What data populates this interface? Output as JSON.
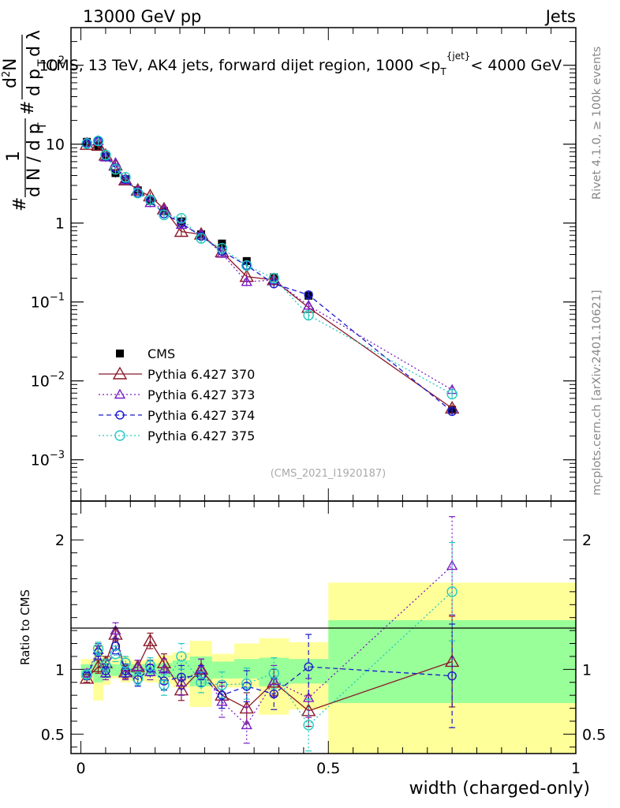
{
  "header": {
    "left": "13000 GeV pp",
    "right": "Jets"
  },
  "colors": {
    "cms": "#000000",
    "s370": "#8b1a2a",
    "s373": "#7a1fc2",
    "s374": "#1a1acc",
    "s375": "#22c9c0",
    "band_yellow": "#ffff99",
    "band_green": "#99ff99"
  },
  "chart_data": [
    {
      "type": "line",
      "panel": "main",
      "title": "CMS, 13 TeV, AK4 jets, forward dijet region, 1000 <p_T^{jet}< 4000 GeV",
      "ylabel": "1/dN/dp_T  dN/dp_T dλ",
      "ylabel_parts": [
        "#",
        "1",
        "d N / d p",
        "T",
        "#",
        "d",
        "2",
        "N",
        "d p",
        "T",
        "d λ"
      ],
      "yscale": "log",
      "ylim": [
        0.0003,
        300
      ],
      "xlim": [
        -0.02,
        1.0
      ],
      "yticks": [
        {
          "value": 0.001,
          "base": "10",
          "exp": "−3"
        },
        {
          "value": 0.01,
          "base": "10",
          "exp": "−2"
        },
        {
          "value": 0.1,
          "base": "10",
          "exp": "−1"
        },
        {
          "value": 1,
          "base": "1",
          "exp": ""
        },
        {
          "value": 10,
          "base": "10",
          "exp": ""
        },
        {
          "value": 100,
          "base": "10",
          "exp": "2"
        }
      ],
      "side_labels": {
        "rivet": "Rivet 4.1.0, ≥ 100k events",
        "mcplots": "mcplots.cern.ch [arXiv:2401.10621]"
      },
      "watermark": "(CMS_2021_I1920187)",
      "x": [
        0.012,
        0.035,
        0.05,
        0.07,
        0.09,
        0.115,
        0.14,
        0.168,
        0.203,
        0.243,
        0.285,
        0.335,
        0.39,
        0.46,
        0.75
      ],
      "series": [
        {
          "name": "CMS",
          "key": "cms",
          "marker": "square",
          "values": [
            10.7,
            9.5,
            7.0,
            4.3,
            3.6,
            2.6,
            1.9,
            1.42,
            1.05,
            0.72,
            0.55,
            0.33,
            0.205,
            0.12,
            0.0043
          ]
        },
        {
          "name": "Pythia 6.427 370",
          "key": "s370",
          "marker": "triangle-open",
          "dash": "",
          "values": [
            9.9,
            9.6,
            7.2,
            5.4,
            3.5,
            2.6,
            2.2,
            1.5,
            0.78,
            0.72,
            0.43,
            0.21,
            0.19,
            0.085,
            0.0045
          ]
        },
        {
          "name": "Pythia 6.427 373",
          "key": "s373",
          "marker": "triangle-open-small",
          "dash": "2,3",
          "values": [
            10.4,
            11.0,
            6.8,
            5.8,
            3.5,
            2.6,
            1.8,
            1.5,
            0.95,
            0.72,
            0.41,
            0.18,
            0.19,
            0.09,
            0.0077
          ]
        },
        {
          "name": "Pythia 6.427 374",
          "key": "s374",
          "marker": "circle-open",
          "dash": "6,4",
          "values": [
            10.1,
            10.9,
            7.0,
            5.0,
            3.6,
            2.4,
            1.93,
            1.31,
            1.0,
            0.68,
            0.44,
            0.29,
            0.17,
            0.123,
            0.0041
          ]
        },
        {
          "name": "Pythia 6.427 375",
          "key": "s375",
          "marker": "circle-open-large",
          "dash": "2,3",
          "values": [
            10.2,
            11.0,
            7.3,
            4.8,
            3.8,
            2.4,
            1.97,
            1.27,
            1.15,
            0.64,
            0.48,
            0.29,
            0.2,
            0.068,
            0.0068
          ]
        }
      ]
    },
    {
      "type": "line",
      "panel": "ratio",
      "ylabel": "Ratio to CMS",
      "xlabel": "width (charged-only)",
      "ylim": [
        0.35,
        2.3
      ],
      "yticks": [
        "0.5",
        "1",
        "2"
      ],
      "xticks": [
        "0",
        "0.5",
        "1"
      ],
      "bands": {
        "edges": [
          0.0,
          0.025,
          0.045,
          0.06,
          0.08,
          0.1,
          0.13,
          0.155,
          0.185,
          0.22,
          0.265,
          0.31,
          0.36,
          0.42,
          0.5,
          1.0
        ],
        "yellow_lo": [
          0.91,
          0.76,
          0.88,
          0.93,
          0.9,
          0.91,
          0.9,
          0.89,
          0.86,
          0.71,
          0.86,
          0.86,
          0.65,
          0.69,
          0.35
        ],
        "yellow_hi": [
          1.08,
          1.19,
          1.1,
          1.08,
          1.1,
          1.07,
          1.08,
          1.11,
          1.13,
          1.22,
          1.12,
          1.2,
          1.24,
          1.21,
          1.67
        ],
        "green_lo": [
          0.95,
          0.9,
          0.93,
          0.95,
          0.94,
          0.95,
          0.95,
          0.94,
          0.93,
          0.87,
          0.93,
          0.93,
          0.87,
          0.89,
          0.74
        ],
        "green_hi": [
          1.04,
          1.07,
          1.05,
          1.04,
          1.05,
          1.04,
          1.04,
          1.05,
          1.07,
          1.1,
          1.06,
          1.08,
          1.09,
          1.08,
          1.38
        ]
      },
      "x": [
        0.012,
        0.035,
        0.05,
        0.07,
        0.09,
        0.115,
        0.14,
        0.168,
        0.203,
        0.243,
        0.285,
        0.335,
        0.39,
        0.46,
        0.75
      ],
      "series": [
        {
          "name": "Pythia 6.427 370",
          "key": "s370",
          "marker": "triangle-open",
          "dash": "",
          "values": [
            0.93,
            1.02,
            1.05,
            1.27,
            0.98,
            1.02,
            1.22,
            1.05,
            0.84,
            1.0,
            0.8,
            0.7,
            0.9,
            0.68,
            1.06
          ],
          "err": [
            0.03,
            0.05,
            0.05,
            0.05,
            0.05,
            0.05,
            0.06,
            0.07,
            0.08,
            0.08,
            0.1,
            0.12,
            0.1,
            0.12,
            0.35
          ]
        },
        {
          "name": "Pythia 6.427 373",
          "key": "s373",
          "marker": "triangle-open-small",
          "dash": "2,3",
          "values": [
            0.97,
            1.15,
            0.97,
            1.3,
            0.97,
            1.02,
            0.98,
            1.0,
            0.9,
            1.0,
            0.75,
            0.57,
            0.91,
            0.78,
            1.8
          ],
          "err": [
            0.03,
            0.05,
            0.05,
            0.06,
            0.05,
            0.05,
            0.06,
            0.08,
            0.1,
            0.08,
            0.12,
            0.14,
            0.12,
            0.15,
            0.38
          ]
        },
        {
          "name": "Pythia 6.427 374",
          "key": "s374",
          "marker": "circle-open",
          "dash": "6,4",
          "values": [
            0.95,
            1.13,
            0.99,
            1.18,
            0.99,
            0.92,
            1.01,
            0.91,
            0.94,
            0.95,
            0.8,
            0.87,
            0.81,
            1.02,
            0.95
          ],
          "err": [
            0.03,
            0.05,
            0.05,
            0.06,
            0.05,
            0.05,
            0.06,
            0.07,
            0.09,
            0.08,
            0.1,
            0.12,
            0.12,
            0.25,
            0.4
          ]
        },
        {
          "name": "Pythia 6.427 375",
          "key": "s375",
          "marker": "circle-open-large",
          "dash": "2,3",
          "values": [
            0.96,
            1.16,
            1.03,
            1.12,
            1.05,
            0.93,
            1.03,
            0.88,
            1.1,
            0.9,
            0.88,
            0.89,
            0.97,
            0.57,
            1.6
          ],
          "err": [
            0.03,
            0.05,
            0.05,
            0.06,
            0.05,
            0.05,
            0.06,
            0.08,
            0.1,
            0.08,
            0.1,
            0.12,
            0.12,
            0.2,
            0.38
          ]
        }
      ]
    }
  ]
}
